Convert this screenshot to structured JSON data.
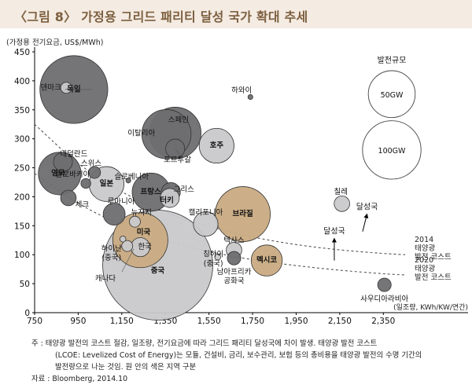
{
  "title": "〈그림 8〉 가정용 그리드 패리티 달성 국가 확대 추세",
  "chart_data": {
    "type": "scatter",
    "title": "〈그림 8〉 가정용 그리드 패리티 달성 국가 확대 추세",
    "ylabel": "(가정용 전기요금, US$/MWh)",
    "xlabel": "(일조량, KWh/KW/연간)",
    "xlim": [
      750,
      2450
    ],
    "ylim": [
      0,
      450
    ],
    "x_ticks": [
      "750",
      "950",
      "1,150",
      "1,350",
      "1,550",
      "1,750",
      "1,950",
      "2,150",
      "2,350"
    ],
    "y_ticks": [
      "0",
      "50",
      "100",
      "150",
      "200",
      "250",
      "300",
      "350",
      "400",
      "450"
    ],
    "grid": false,
    "size_legend_title": "발전규모",
    "size_legend": [
      {
        "label": "50GW",
        "gw": 50
      },
      {
        "label": "100GW",
        "gw": 100
      }
    ],
    "curves": [
      {
        "name": "2014 태양광 발전 코스트",
        "label_lines": [
          "2014",
          "태양광",
          "발전 코스트"
        ],
        "x": [
          750,
          950,
          1150,
          1350,
          1550,
          1750,
          1950,
          2150,
          2350,
          2450
        ],
        "y": [
          325,
          255,
          207,
          172,
          148,
          130,
          117,
          108,
          102,
          100
        ]
      },
      {
        "name": "2020 태양광 발전 코스트",
        "label_lines": [
          "2020",
          "태양광",
          "발전 코스트"
        ],
        "x": [
          750,
          950,
          1150,
          1350,
          1550,
          1750,
          1950,
          2150,
          2350,
          2450
        ],
        "y": [
          240,
          187,
          150,
          124,
          105,
          91,
          81,
          73,
          67,
          65
        ]
      }
    ],
    "arrows": [
      {
        "label": "달성국",
        "x_from": 2125,
        "y_from": 90,
        "x_to": 2125,
        "y_to": 128
      },
      {
        "label": "달성국",
        "x_from": 2255,
        "y_from": 140,
        "x_to": 2275,
        "y_to": 170
      }
    ],
    "points": [
      {
        "name": "덴마크",
        "x": 895,
        "y": 388,
        "gw": 1,
        "color": "light"
      },
      {
        "name": "독일",
        "x": 930,
        "y": 385,
        "gw": 38,
        "color": "dark"
      },
      {
        "name": "하와이",
        "x": 1740,
        "y": 372,
        "gw": 0.2,
        "color": "dark"
      },
      {
        "name": "스페인",
        "x": 1395,
        "y": 310,
        "gw": 22,
        "color": "dark"
      },
      {
        "name": "이탈리아",
        "x": 1355,
        "y": 308,
        "gw": 20,
        "color": "dark"
      },
      {
        "name": "포르투갈",
        "x": 1395,
        "y": 283,
        "gw": 3,
        "color": "dark"
      },
      {
        "name": "호주",
        "x": 1585,
        "y": 288,
        "gw": 10,
        "color": "light"
      },
      {
        "name": "네덜란드",
        "x": 880,
        "y": 260,
        "gw": 3,
        "color": "dark"
      },
      {
        "name": "영국",
        "x": 865,
        "y": 240,
        "gw": 15,
        "color": "dark"
      },
      {
        "name": "스위스",
        "x": 1025,
        "y": 242,
        "gw": 1.2,
        "color": "dark"
      },
      {
        "name": "슬로바키아",
        "x": 985,
        "y": 223,
        "gw": 0.8,
        "color": "dark"
      },
      {
        "name": "일본",
        "x": 1080,
        "y": 222,
        "gw": 10,
        "color": "light"
      },
      {
        "name": "슬로베니아",
        "x": 1180,
        "y": 228,
        "gw": 0.2,
        "color": "dark"
      },
      {
        "name": "프랑스",
        "x": 1285,
        "y": 208,
        "gw": 12,
        "color": "dark"
      },
      {
        "name": "그리스",
        "x": 1375,
        "y": 208,
        "gw": 3,
        "color": "dark"
      },
      {
        "name": "터키",
        "x": 1370,
        "y": 198,
        "gw": 3,
        "color": "light"
      },
      {
        "name": "체크",
        "x": 905,
        "y": 198,
        "gw": 2,
        "color": "dark"
      },
      {
        "name": "루마니아",
        "x": 1115,
        "y": 170,
        "gw": 4,
        "color": "dark"
      },
      {
        "name": "뉴저지",
        "x": 1210,
        "y": 157,
        "gw": 1,
        "color": "light"
      },
      {
        "name": "캘리포니아",
        "x": 1535,
        "y": 153,
        "gw": 5,
        "color": "light"
      },
      {
        "name": "브라질",
        "x": 1705,
        "y": 170,
        "gw": 25,
        "color": "tan"
      },
      {
        "name": "칠레",
        "x": 2160,
        "y": 188,
        "gw": 2,
        "color": "light"
      },
      {
        "name": "미국",
        "x": 1235,
        "y": 125,
        "gw": 25,
        "color": "tan"
      },
      {
        "name": "하이난(중국)",
        "x": 1155,
        "y": 127,
        "gw": 0.3,
        "color": "light"
      },
      {
        "name": "캐나다",
        "x": 1175,
        "y": 115,
        "gw": 1,
        "color": "light"
      },
      {
        "name": "한국",
        "x": 1235,
        "y": 113,
        "gw": 3,
        "color": "light"
      },
      {
        "name": "중국",
        "x": 1315,
        "y": 82,
        "gw": 100,
        "color": "light"
      },
      {
        "name": "칭하이(중국)",
        "x": 1590,
        "y": 96,
        "gw": 0.3,
        "color": "light"
      },
      {
        "name": "텍사스",
        "x": 1665,
        "y": 108,
        "gw": 2,
        "color": "light"
      },
      {
        "name": "남아프리카공화국",
        "x": 1665,
        "y": 94,
        "gw": 1.5,
        "color": "dark"
      },
      {
        "name": "멕시코",
        "x": 1815,
        "y": 90,
        "gw": 8,
        "color": "tan"
      },
      {
        "name": "사우디아라비아",
        "x": 2355,
        "y": 48,
        "gw": 1.5,
        "color": "dark"
      }
    ],
    "labels": [
      {
        "text": "덴마크",
        "x": 825,
        "y": 390
      },
      {
        "text": "독일",
        "x": 930,
        "y": 387,
        "inside": true
      },
      {
        "text": "하와이",
        "x": 1700,
        "y": 385
      },
      {
        "text": "스페인",
        "x": 1410,
        "y": 334
      },
      {
        "text": "이탈리아",
        "x": 1240,
        "y": 311
      },
      {
        "text": "포르투갈",
        "x": 1405,
        "y": 265
      },
      {
        "text": "호주",
        "x": 1585,
        "y": 290,
        "inside": true
      },
      {
        "text": "네덜란드",
        "x": 930,
        "y": 275
      },
      {
        "text": "스위스",
        "x": 1010,
        "y": 259
      },
      {
        "text": "슬로바키아",
        "x": 925,
        "y": 240
      },
      {
        "text": "영국",
        "x": 858,
        "y": 242,
        "inside": true
      },
      {
        "text": "슬로베니아",
        "x": 1195,
        "y": 236
      },
      {
        "text": "일본",
        "x": 1080,
        "y": 224,
        "inside": true
      },
      {
        "text": "그리스",
        "x": 1435,
        "y": 214
      },
      {
        "text": "프랑스",
        "x": 1283,
        "y": 210,
        "inside": true
      },
      {
        "text": "터키",
        "x": 1357,
        "y": 195,
        "inside": true
      },
      {
        "text": "체크",
        "x": 968,
        "y": 188
      },
      {
        "text": "루마니아",
        "x": 1147,
        "y": 193
      },
      {
        "text": "뉴저지",
        "x": 1240,
        "y": 174
      },
      {
        "text": "캘리포니아",
        "x": 1535,
        "y": 174
      },
      {
        "text": "브라질",
        "x": 1705,
        "y": 172,
        "inside": true
      },
      {
        "text": "칠레",
        "x": 2155,
        "y": 210
      },
      {
        "text": "미국",
        "x": 1250,
        "y": 140,
        "inside": true
      },
      {
        "text": "하이난",
        "x": 1103,
        "y": 112
      },
      {
        "text": "(중국)",
        "x": 1103,
        "y": 96
      },
      {
        "text": "캐나다",
        "x": 1075,
        "y": 60
      },
      {
        "text": "한국",
        "x": 1256,
        "y": 115
      },
      {
        "text": "중국",
        "x": 1315,
        "y": 74,
        "inside": true
      },
      {
        "text": "칭하이",
        "x": 1570,
        "y": 102
      },
      {
        "text": "(중국)",
        "x": 1570,
        "y": 86
      },
      {
        "text": "텍사스",
        "x": 1665,
        "y": 126
      },
      {
        "text": "남아프리카",
        "x": 1665,
        "y": 72
      },
      {
        "text": "공화국",
        "x": 1665,
        "y": 56
      },
      {
        "text": "멕시코",
        "x": 1815,
        "y": 92,
        "inside": true
      },
      {
        "text": "사우디아라비아",
        "x": 2355,
        "y": 25
      }
    ]
  },
  "notes": [
    "주 : 태양광 발전의 코스트 절감, 일조량, 전기요금에 따라 그리드 패리티 달성국에 차이 발생. 태양광 발전 코스트",
    "(LCOE: Levelized Cost of Energy)는 모듈, 건설비, 금리, 보수관리, 보험 등의 총비용을 태양광 발전의 수명 기간의",
    "발전량으로 나눈 것임. 원 안의 색은 지역 구분",
    "자료 : Bloomberg, 2014.10"
  ],
  "colors": {
    "dark": "#6e6e70",
    "light": "#c9c9cb",
    "tan": "#c9ab82",
    "title_bg": "#f4ebe2",
    "title_text": "#7c5f3f"
  }
}
